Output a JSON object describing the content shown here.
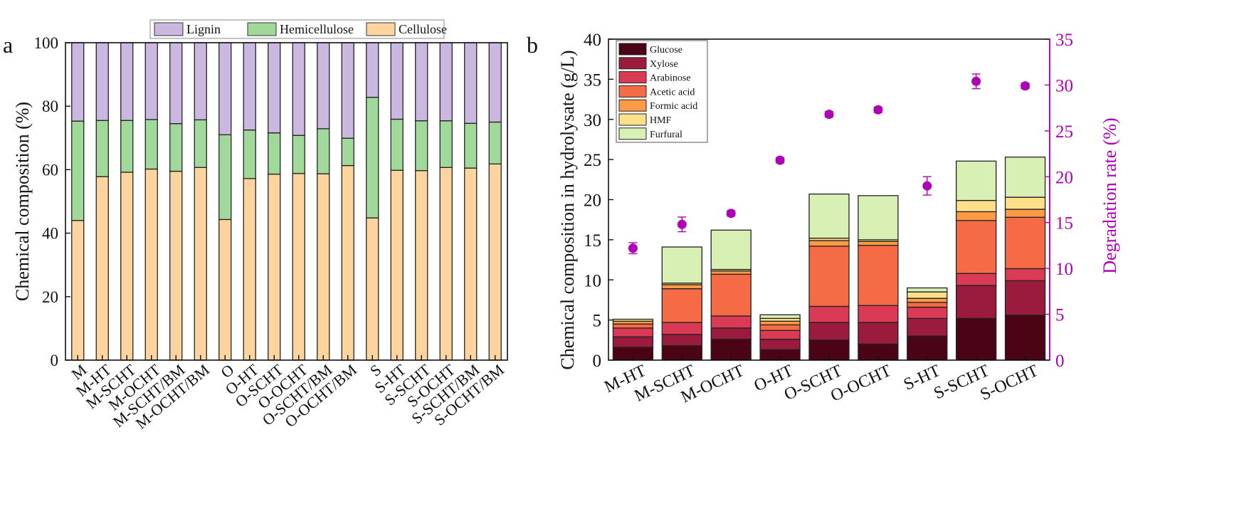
{
  "chart_data": [
    {
      "panel_label": "a",
      "type": "bar",
      "stacked": true,
      "categories": [
        "M",
        "M-HT",
        "M-SCHT",
        "M-OCHT",
        "M-SCHT/BM",
        "M-OCHT/BM",
        "O",
        "O-HT",
        "O-SCHT",
        "O-OCHT",
        "O-SCHT/BM",
        "O-OCHT/BM",
        "S",
        "S-HT",
        "S-SCHT",
        "S-OCHT",
        "S-SCHT/BM",
        "S-OCHT/BM"
      ],
      "series": [
        {
          "name": "Cellulose",
          "color": "#fdd49e",
          "values": [
            44.0,
            57.8,
            59.2,
            60.2,
            59.5,
            60.7,
            44.3,
            57.2,
            58.6,
            58.8,
            58.7,
            61.3,
            44.8,
            59.8,
            59.7,
            60.7,
            60.5,
            61.8
          ]
        },
        {
          "name": "Hemicellulose",
          "color": "#a1d99b",
          "values": [
            31.3,
            17.7,
            16.3,
            15.6,
            15.0,
            15.0,
            26.7,
            15.3,
            13.0,
            12.0,
            14.2,
            8.6,
            38.0,
            16.1,
            15.7,
            14.7,
            14.1,
            13.2
          ]
        },
        {
          "name": "Lignin",
          "color": "#cbb8e0",
          "values": [
            24.7,
            24.5,
            24.5,
            24.2,
            25.5,
            24.3,
            29.0,
            27.5,
            28.4,
            29.2,
            27.1,
            30.1,
            17.2,
            24.1,
            24.6,
            24.6,
            25.4,
            25.0
          ]
        }
      ],
      "legend_order": [
        "Lignin",
        "Hemicellulose",
        "Cellulose"
      ],
      "legend_position": "top",
      "ylabel": "Chemical composition (%)",
      "xlabel": "",
      "ylim": [
        0,
        100
      ],
      "yticks": [
        0,
        20,
        40,
        60,
        80,
        100
      ]
    },
    {
      "panel_label": "b",
      "type": "bar",
      "stacked": true,
      "categories": [
        "M-HT",
        "M-SCHT",
        "M-OCHT",
        "O-HT",
        "O-SCHT",
        "O-OCHT",
        "S-HT",
        "S-SCHT",
        "S-OCHT"
      ],
      "series": [
        {
          "name": "Glucose",
          "color": "#4a0415",
          "values": [
            1.6,
            1.8,
            2.6,
            1.3,
            2.5,
            2.0,
            3.0,
            5.2,
            5.6
          ]
        },
        {
          "name": "Xylose",
          "color": "#9b1b3c",
          "values": [
            1.3,
            1.4,
            1.4,
            1.3,
            2.2,
            2.7,
            2.2,
            4.1,
            4.3
          ]
        },
        {
          "name": "Arabinose",
          "color": "#db3a55",
          "values": [
            1.1,
            1.5,
            1.5,
            1.1,
            2.0,
            2.1,
            1.4,
            1.5,
            1.5
          ]
        },
        {
          "name": "Acetic acid",
          "color": "#f56b45",
          "values": [
            0.5,
            4.2,
            5.2,
            0.7,
            7.5,
            7.5,
            0.6,
            6.6,
            6.4
          ]
        },
        {
          "name": "Formic acid",
          "color": "#fc9a45",
          "values": [
            0.35,
            0.5,
            0.4,
            0.45,
            0.7,
            0.5,
            0.5,
            1.1,
            1.0
          ]
        },
        {
          "name": "HMF",
          "color": "#fee08b",
          "values": [
            0.25,
            0.2,
            0.2,
            0.35,
            0.3,
            0.2,
            0.8,
            1.4,
            1.5
          ]
        },
        {
          "name": "Furfural",
          "color": "#d9f0b5",
          "values": [
            0.0,
            4.5,
            4.9,
            0.45,
            5.5,
            5.5,
            0.5,
            4.9,
            5.0
          ]
        }
      ],
      "degradation_rate": {
        "values": [
          12.2,
          14.8,
          16.0,
          21.8,
          26.8,
          27.3,
          19.0,
          30.4,
          29.9
        ],
        "errors": [
          0.6,
          0.8,
          0.3,
          0.3,
          0.3,
          0.3,
          1.0,
          0.8,
          0.3
        ],
        "color": "#b000b5",
        "marker": "circle"
      },
      "ylabel": "Chemical composition in hydrolysate (g/L)",
      "y2label": "Degradation rate (%)",
      "ylim": [
        0,
        40
      ],
      "yticks": [
        0,
        5,
        10,
        15,
        20,
        25,
        30,
        35,
        40
      ],
      "y2lim": [
        0,
        35
      ],
      "y2ticks": [
        0,
        5,
        10,
        15,
        20,
        25,
        30,
        35
      ],
      "legend_position": "top-left"
    }
  ]
}
